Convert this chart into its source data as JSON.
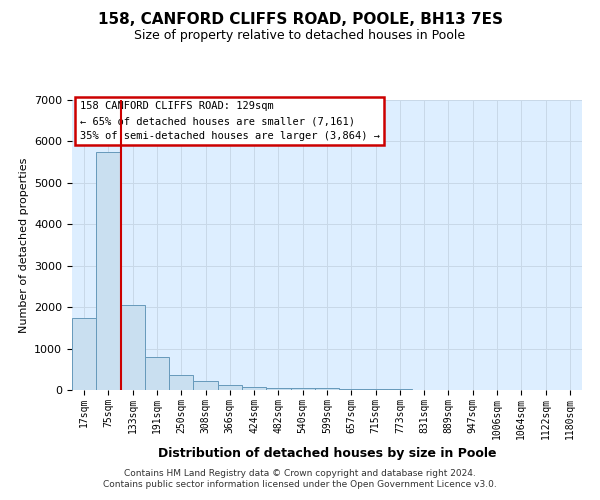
{
  "title_line1": "158, CANFORD CLIFFS ROAD, POOLE, BH13 7ES",
  "title_line2": "Size of property relative to detached houses in Poole",
  "xlabel": "Distribution of detached houses by size in Poole",
  "ylabel": "Number of detached properties",
  "bar_labels": [
    "17sqm",
    "75sqm",
    "133sqm",
    "191sqm",
    "250sqm",
    "308sqm",
    "366sqm",
    "424sqm",
    "482sqm",
    "540sqm",
    "599sqm",
    "657sqm",
    "715sqm",
    "773sqm",
    "831sqm",
    "889sqm",
    "947sqm",
    "1006sqm",
    "1064sqm",
    "1122sqm",
    "1180sqm"
  ],
  "bar_values": [
    1750,
    5750,
    2050,
    800,
    370,
    220,
    130,
    80,
    60,
    50,
    40,
    30,
    20,
    15,
    12,
    10,
    8,
    6,
    5,
    4,
    3
  ],
  "bar_color": "#c9dff0",
  "bar_edge_color": "#6699bb",
  "red_line_label": "158 CANFORD CLIFFS ROAD: 129sqm",
  "annotation_line2": "← 65% of detached houses are smaller (7,161)",
  "annotation_line3": "35% of semi-detached houses are larger (3,864) →",
  "annotation_box_color": "#ffffff",
  "annotation_box_edge": "#cc0000",
  "ylim": [
    0,
    7000
  ],
  "yticks": [
    0,
    1000,
    2000,
    3000,
    4000,
    5000,
    6000,
    7000
  ],
  "grid_color": "#c8d8e8",
  "background_color": "#ddeeff",
  "footer_line1": "Contains HM Land Registry data © Crown copyright and database right 2024.",
  "footer_line2": "Contains public sector information licensed under the Open Government Licence v3.0."
}
